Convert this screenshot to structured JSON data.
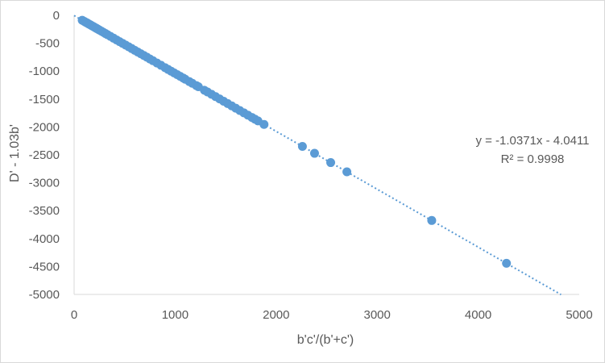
{
  "chart_data": {
    "type": "scatter",
    "title": "",
    "xlabel": "b'c'/(b'+c')",
    "ylabel": "D'  - 1.03b'",
    "xlim": [
      0,
      5000
    ],
    "ylim": [
      -5000,
      0
    ],
    "x_ticks": [
      "0",
      "1000",
      "2000",
      "3000",
      "4000",
      "5000"
    ],
    "y_ticks": [
      "0",
      "-500",
      "-1000",
      "-1500",
      "-2000",
      "-2500",
      "-3000",
      "-3500",
      "-4000",
      "-4500",
      "-5000"
    ],
    "grid": "none",
    "legend": "none",
    "marker_color": "#5b9bd5",
    "trendline": {
      "type": "linear",
      "style": "dotted",
      "slope": -1.0371,
      "intercept": -4.0411,
      "x_range": [
        0,
        4820
      ],
      "equation": "y = -1.0371x - 4.0411",
      "r_squared": "R² = 0.9998"
    },
    "points": [
      [
        80,
        -88
      ],
      [
        100,
        -108
      ],
      [
        115,
        -124
      ],
      [
        130,
        -138
      ],
      [
        145,
        -155
      ],
      [
        160,
        -170
      ],
      [
        175,
        -186
      ],
      [
        190,
        -201
      ],
      [
        205,
        -217
      ],
      [
        220,
        -232
      ],
      [
        235,
        -248
      ],
      [
        250,
        -264
      ],
      [
        270,
        -284
      ],
      [
        290,
        -305
      ],
      [
        310,
        -326
      ],
      [
        330,
        -346
      ],
      [
        360,
        -378
      ],
      [
        390,
        -409
      ],
      [
        420,
        -440
      ],
      [
        450,
        -471
      ],
      [
        480,
        -502
      ],
      [
        510,
        -533
      ],
      [
        540,
        -564
      ],
      [
        570,
        -595
      ],
      [
        600,
        -626
      ],
      [
        630,
        -657
      ],
      [
        660,
        -688
      ],
      [
        690,
        -719
      ],
      [
        720,
        -750
      ],
      [
        750,
        -782
      ],
      [
        780,
        -812
      ],
      [
        820,
        -854
      ],
      [
        860,
        -895
      ],
      [
        900,
        -937
      ],
      [
        930,
        -969
      ],
      [
        960,
        -1000
      ],
      [
        990,
        -1031
      ],
      [
        1020,
        -1062
      ],
      [
        1050,
        -1093
      ],
      [
        1080,
        -1124
      ],
      [
        1100,
        -1145
      ],
      [
        1140,
        -1186
      ],
      [
        1170,
        -1217
      ],
      [
        1210,
        -1259
      ],
      [
        1230,
        -1279
      ],
      [
        1290,
        -1342
      ],
      [
        1320,
        -1373
      ],
      [
        1360,
        -1414
      ],
      [
        1400,
        -1456
      ],
      [
        1440,
        -1497
      ],
      [
        1480,
        -1539
      ],
      [
        1520,
        -1580
      ],
      [
        1560,
        -1622
      ],
      [
        1600,
        -1663
      ],
      [
        1640,
        -1705
      ],
      [
        1680,
        -1746
      ],
      [
        1720,
        -1788
      ],
      [
        1760,
        -1829
      ],
      [
        1790,
        -1860
      ],
      [
        1820,
        -1891
      ],
      [
        1880,
        -1954
      ],
      [
        2260,
        -2348
      ],
      [
        2380,
        -2472
      ],
      [
        2540,
        -2638
      ],
      [
        2700,
        -2804
      ],
      [
        3540,
        -3675
      ],
      [
        4280,
        -4442
      ]
    ]
  }
}
